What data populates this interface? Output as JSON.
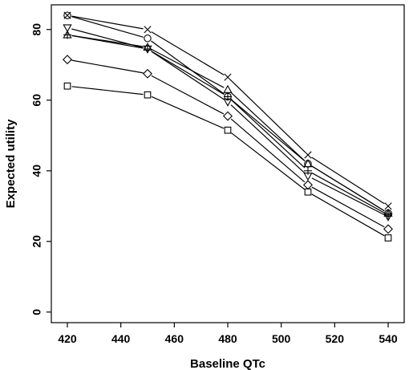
{
  "chart_data": {
    "type": "line",
    "title": "",
    "xlabel": "Baseline QTc",
    "ylabel": "Expected utility",
    "x": [
      420,
      450,
      480,
      510,
      540
    ],
    "xlim": [
      414,
      546
    ],
    "ylim": [
      -3,
      87
    ],
    "xticks": [
      420,
      440,
      460,
      480,
      500,
      520,
      540
    ],
    "yticks": [
      0,
      20,
      40,
      60,
      80
    ],
    "grid": false,
    "legend": "none",
    "series": [
      {
        "marker": "x",
        "values": [
          84,
          80,
          66.5,
          44.5,
          30
        ]
      },
      {
        "marker": "circle",
        "values": [
          84,
          77.5,
          61,
          42,
          28
        ]
      },
      {
        "marker": "triangle-up",
        "values": [
          78.5,
          75,
          63,
          42,
          28
        ]
      },
      {
        "marker": "plus",
        "values": [
          78.5,
          74.5,
          61,
          40,
          27.5
        ]
      },
      {
        "marker": "triangle-down",
        "values": [
          80.5,
          74.5,
          59.5,
          38.5,
          27
        ]
      },
      {
        "marker": "diamond",
        "values": [
          71.5,
          67.5,
          55.5,
          36,
          23.5
        ]
      },
      {
        "marker": "square",
        "values": [
          64,
          61.5,
          51.5,
          34,
          21
        ]
      }
    ]
  }
}
